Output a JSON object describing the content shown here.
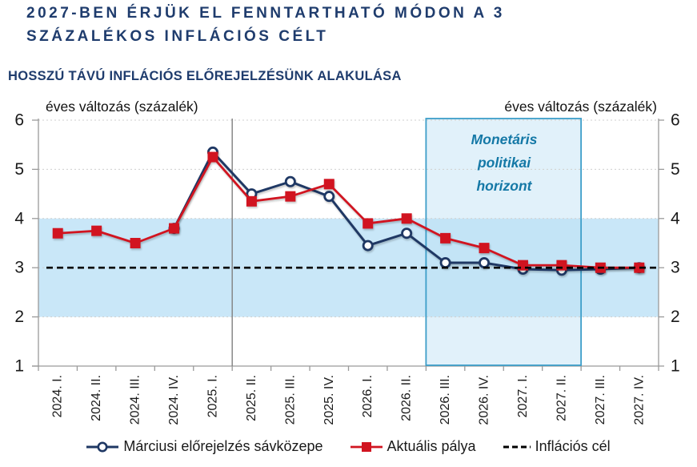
{
  "header": {
    "title_line1": "2027-BEN ÉRJÜK EL FENNTARTHATÓ MÓDON A 3",
    "title_line2": "SZÁZALÉKOS INFLÁCIÓS CÉLT",
    "subtitle": "HOSSZÚ TÁVÚ INFLÁCIÓS ELŐREJELZÉSÜNK ALAKULÁSA"
  },
  "axis_labels": {
    "left_unit": "éves változás (százalék)",
    "right_unit": "éves változás (százalék)"
  },
  "annotation": {
    "monetary_horizon_text": "Monetáris politikai horizont"
  },
  "legend": [
    {
      "label": "Márciusi előrejelzés sávközepe",
      "marker": "line-open-circle",
      "color": "#1F3864"
    },
    {
      "label": "Aktuális pálya",
      "marker": "line-filled-square",
      "color": "#D11420"
    },
    {
      "label": "Inflációs cél",
      "marker": "dashed-line",
      "color": "#000000"
    }
  ],
  "colors": {
    "navy_series": "#1F3864",
    "red_series": "#D11420",
    "target_line": "#000000",
    "band_fill": "#C9E7F8",
    "horizon_box_fill": "#BCE0F3",
    "horizon_box_border": "#3D9EC9",
    "gridline": "#CFCFCF",
    "axis_line": "#9A9A9A",
    "divider_line": "#808080",
    "tick_label": "#1A1A1A",
    "title_navy": "#1F3C6D",
    "annotation_teal": "#1478A6"
  },
  "chart_data": {
    "type": "line",
    "title": "HOSSZÚ TÁVÚ INFLÁCIÓS ELŐREJELZÉSÜNK ALAKULÁSA",
    "ylabel": "éves változás (százalék)",
    "ylim": [
      1,
      6
    ],
    "yticks": [
      1,
      2,
      3,
      4,
      5,
      6
    ],
    "grid": "dotted-horizontal",
    "legend_position": "bottom",
    "categories": [
      "2024. I.",
      "2024. II.",
      "2024. III.",
      "2024. IV.",
      "2025. I.",
      "2025. II.",
      "2025. III.",
      "2025. IV.",
      "2026. I.",
      "2026. II.",
      "2026. III.",
      "2026. IV.",
      "2027. I.",
      "2027. II.",
      "2027. III.",
      "2027. IV."
    ],
    "series": [
      {
        "name": "Márciusi előrejelzés sávközepe",
        "marker": "circle",
        "color": "#1F3864",
        "values": [
          null,
          null,
          null,
          3.8,
          5.35,
          4.5,
          4.75,
          4.45,
          3.45,
          3.7,
          3.1,
          3.1,
          2.97,
          2.95,
          2.97,
          3.0
        ]
      },
      {
        "name": "Aktuális pálya",
        "marker": "square",
        "color": "#D11420",
        "values": [
          3.7,
          3.75,
          3.5,
          3.8,
          5.25,
          4.35,
          4.45,
          4.7,
          3.9,
          4.0,
          3.6,
          3.4,
          3.05,
          3.05,
          3.0,
          3.0
        ]
      }
    ],
    "target_line": {
      "name": "Inflációs cél",
      "value": 3,
      "style": "dashed",
      "color": "#000000"
    },
    "band": {
      "from": 2,
      "to": 4,
      "color": "#C9E7F8"
    },
    "forecast_divider_after": "2025. I.",
    "monetary_horizon": {
      "from": "2026. III.",
      "to": "2027. II."
    }
  }
}
